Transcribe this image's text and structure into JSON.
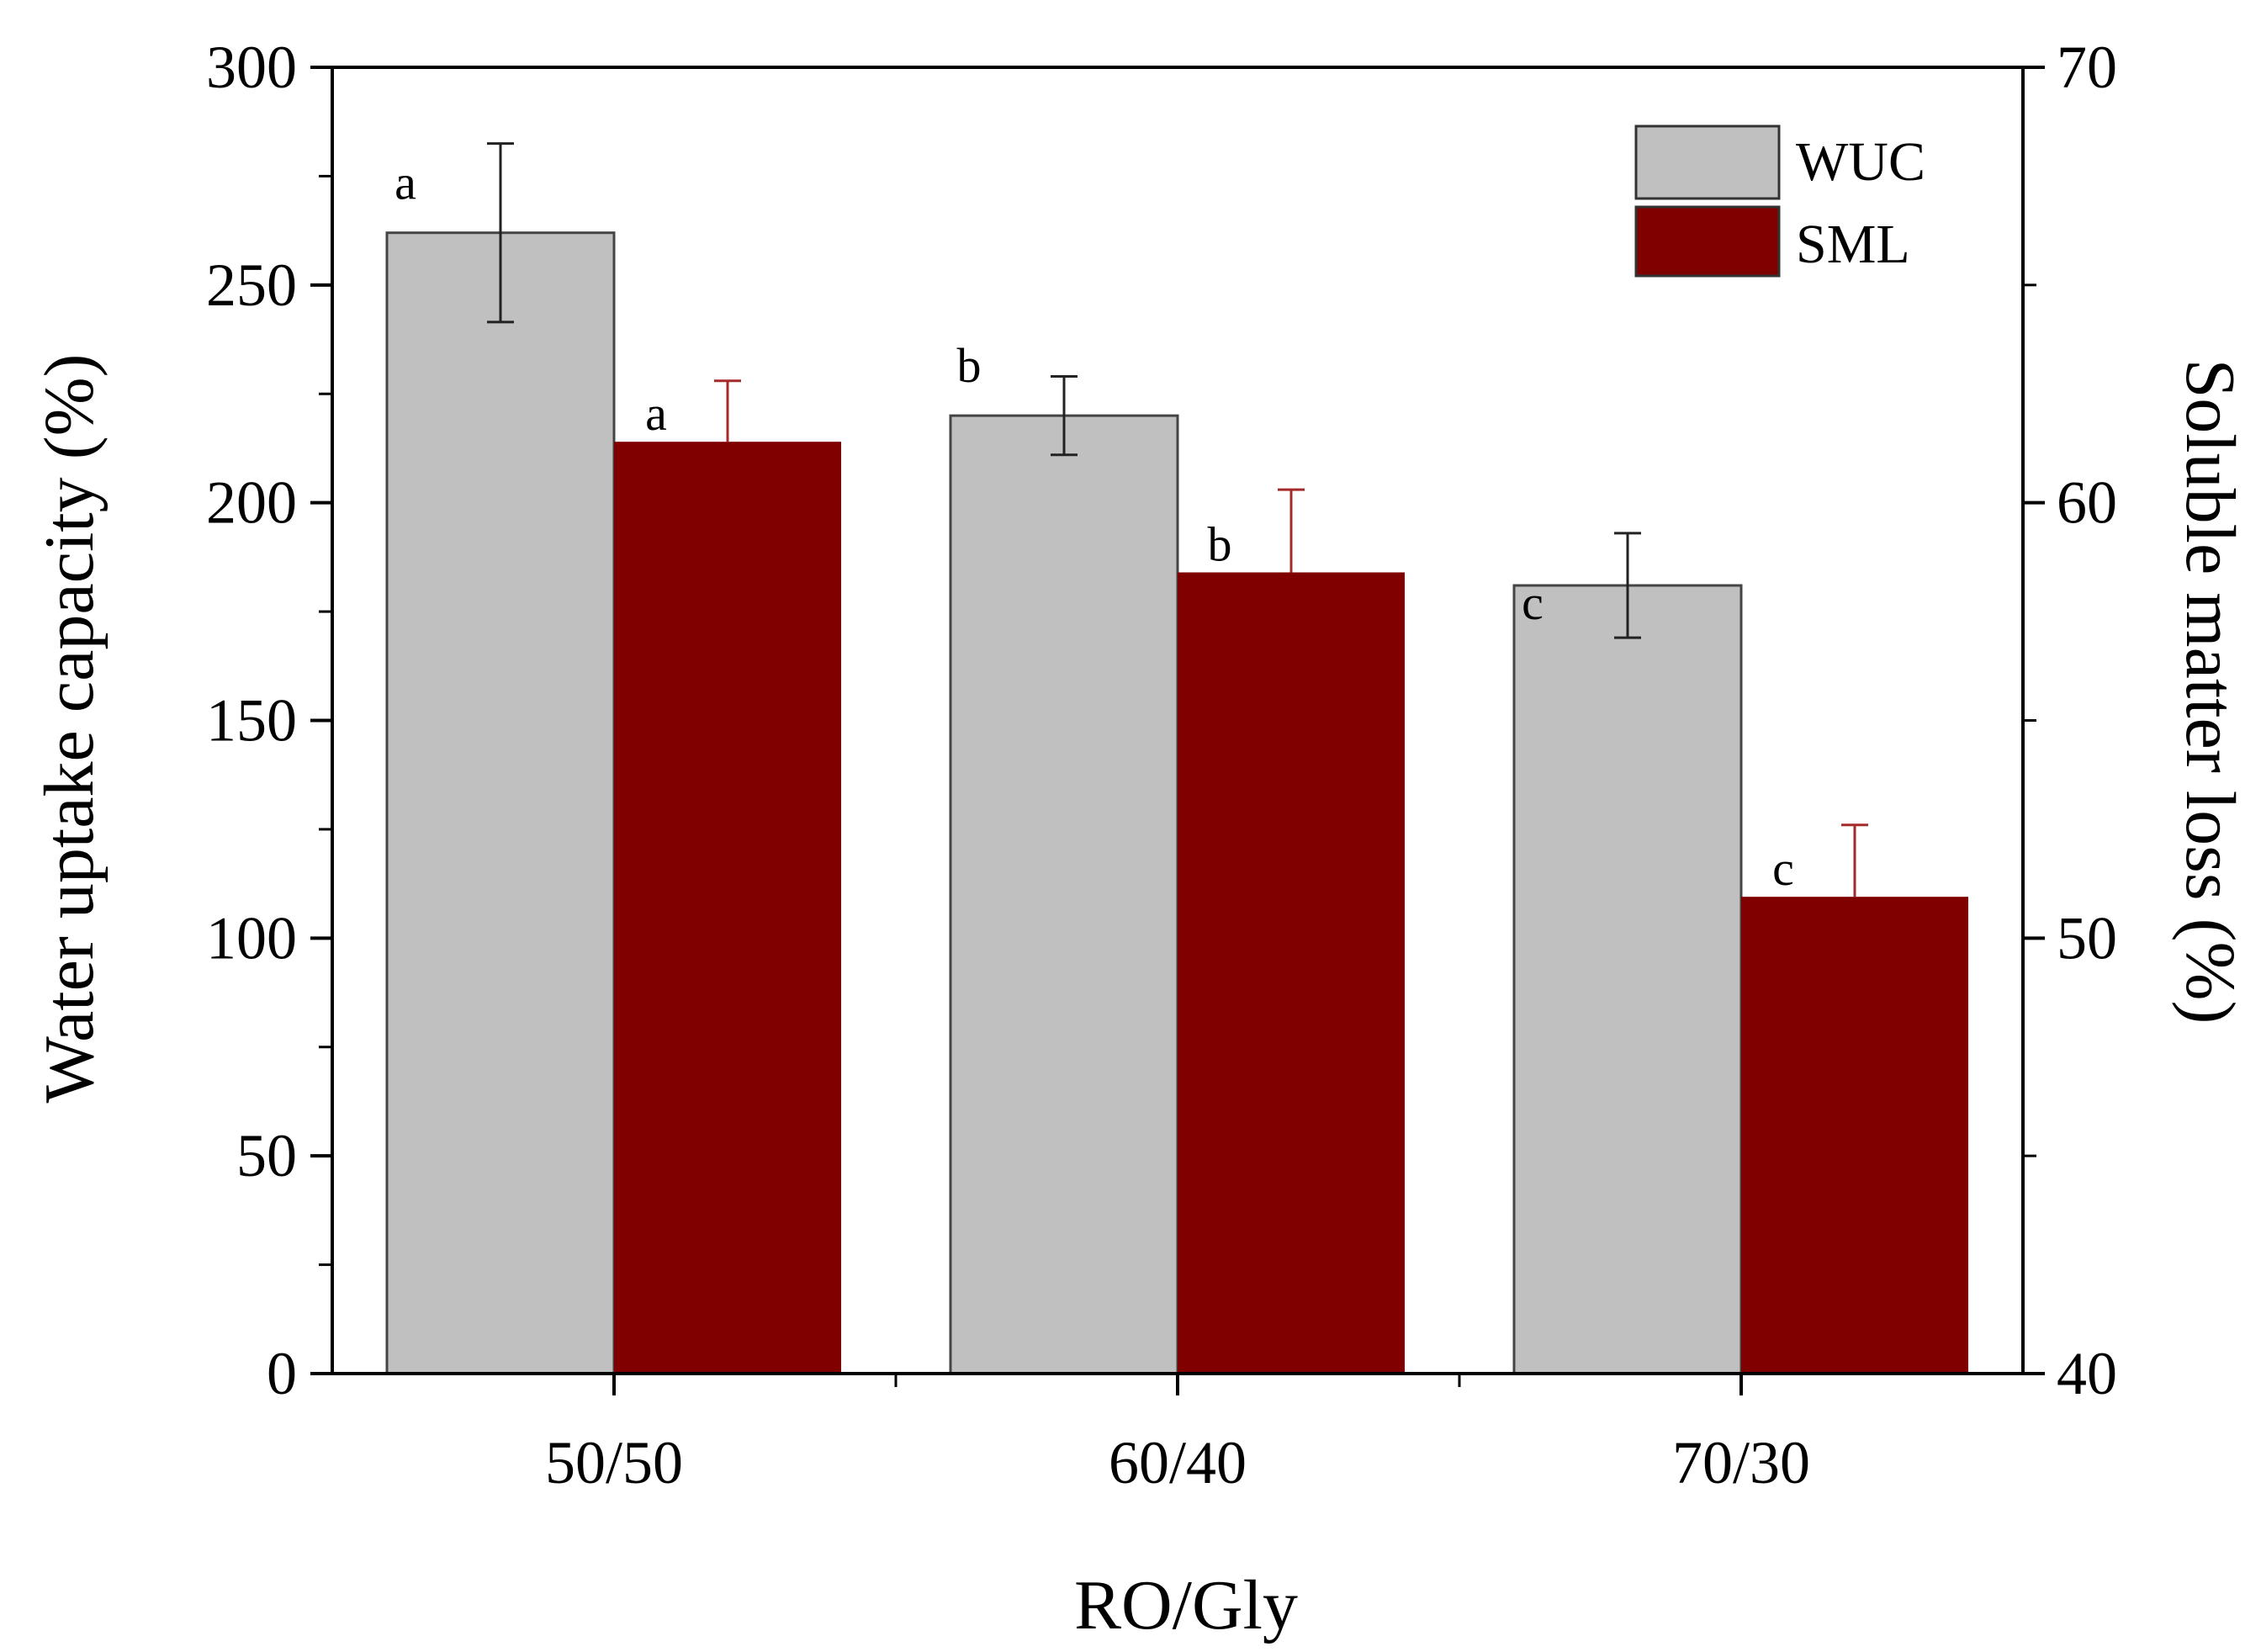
{
  "chart_data": {
    "type": "bar",
    "xlabel": "RO/Gly",
    "ylabel_left": "Water uptake capacity (%)",
    "ylabel_right": "Soluble matter loss (%)",
    "categories": [
      "50/50",
      "60/40",
      "70/30"
    ],
    "y_left": {
      "lim": [
        0,
        300
      ],
      "ticks": [
        0,
        50,
        100,
        150,
        200,
        250,
        300
      ],
      "tick_labels": [
        "0",
        "50",
        "100",
        "150",
        "200",
        "250",
        "300"
      ]
    },
    "y_right": {
      "lim": [
        40,
        70
      ],
      "ticks": [
        40,
        50,
        60,
        70
      ],
      "tick_labels": [
        "40",
        "50",
        "60",
        "70"
      ]
    },
    "series": [
      {
        "name": "WUC",
        "axis": "left",
        "color": "#c0c0c0",
        "values": [
          262,
          220,
          181
        ],
        "errors": [
          20.5,
          9,
          12
        ],
        "sig_letters": [
          "a",
          "b",
          "c"
        ]
      },
      {
        "name": "SML",
        "axis": "right",
        "color": "#800000",
        "values": [
          61.4,
          58.4,
          50.95
        ],
        "errors": [
          1.4,
          1.9,
          1.65
        ],
        "sig_letters": [
          "a",
          "b",
          "c"
        ]
      }
    ],
    "legend": {
      "position": "top-right",
      "entries": [
        "WUC",
        "SML"
      ]
    }
  }
}
